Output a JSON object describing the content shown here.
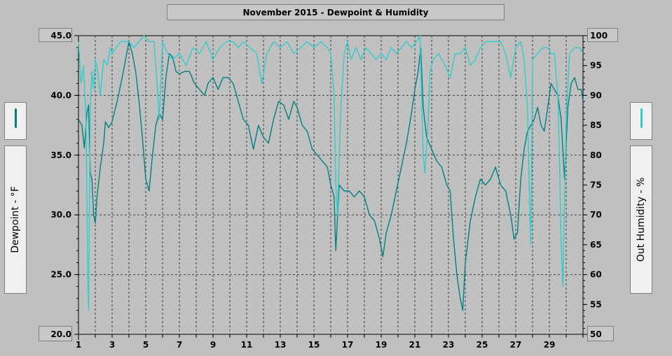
{
  "chart_data": {
    "type": "line",
    "title": "November 2015 - Dewpoint & Humidity",
    "ylabel_left": "Dewpoint - °F",
    "ylabel_right": "Out Humidity - %",
    "x_ticks": [
      "1",
      "3",
      "5",
      "7",
      "9",
      "11",
      "13",
      "15",
      "17",
      "19",
      "21",
      "23",
      "25",
      "27",
      "29"
    ],
    "x_range": [
      1,
      31
    ],
    "y_left": {
      "range": [
        20,
        45
      ],
      "ticks": [
        "45.0",
        "40.0",
        "35.0",
        "30.0",
        "25.0",
        "20.0"
      ]
    },
    "y_right": {
      "range": [
        50,
        100
      ],
      "ticks": [
        "100",
        "95",
        "90",
        "85",
        "80",
        "75",
        "70",
        "65",
        "60",
        "55",
        "50"
      ]
    },
    "series": [
      {
        "name": "Dewpoint",
        "axis": "left",
        "color": "#008080",
        "points": [
          [
            1.0,
            38.0
          ],
          [
            1.2,
            37.5
          ],
          [
            1.35,
            35.6
          ],
          [
            1.5,
            38.5
          ],
          [
            1.6,
            39.2
          ],
          [
            1.7,
            33.5
          ],
          [
            1.8,
            33.0
          ],
          [
            1.9,
            30.0
          ],
          [
            2.0,
            29.3
          ],
          [
            2.1,
            31.5
          ],
          [
            2.3,
            34.0
          ],
          [
            2.5,
            36.0
          ],
          [
            2.6,
            37.8
          ],
          [
            2.8,
            37.3
          ],
          [
            3.0,
            37.8
          ],
          [
            3.3,
            39.5
          ],
          [
            3.6,
            41.5
          ],
          [
            3.8,
            43.0
          ],
          [
            4.0,
            44.5
          ],
          [
            4.2,
            43.5
          ],
          [
            4.4,
            42.0
          ],
          [
            4.6,
            39.5
          ],
          [
            4.8,
            36.5
          ],
          [
            5.0,
            33.0
          ],
          [
            5.2,
            32.0
          ],
          [
            5.4,
            35.0
          ],
          [
            5.6,
            37.5
          ],
          [
            5.8,
            38.5
          ],
          [
            6.0,
            38.0
          ],
          [
            6.2,
            41.5
          ],
          [
            6.4,
            43.5
          ],
          [
            6.6,
            43.2
          ],
          [
            6.8,
            42.0
          ],
          [
            7.0,
            41.8
          ],
          [
            7.3,
            42.0
          ],
          [
            7.6,
            42.0
          ],
          [
            7.9,
            41.0
          ],
          [
            8.2,
            40.5
          ],
          [
            8.5,
            40.0
          ],
          [
            8.7,
            41.0
          ],
          [
            9.0,
            41.5
          ],
          [
            9.3,
            40.5
          ],
          [
            9.6,
            41.5
          ],
          [
            9.9,
            41.5
          ],
          [
            10.2,
            41.0
          ],
          [
            10.5,
            39.5
          ],
          [
            10.8,
            38.0
          ],
          [
            11.1,
            37.5
          ],
          [
            11.4,
            35.5
          ],
          [
            11.7,
            37.5
          ],
          [
            12.0,
            36.5
          ],
          [
            12.3,
            36.0
          ],
          [
            12.6,
            38.0
          ],
          [
            12.9,
            39.5
          ],
          [
            13.2,
            39.2
          ],
          [
            13.5,
            38.0
          ],
          [
            13.8,
            39.5
          ],
          [
            14.0,
            39.0
          ],
          [
            14.3,
            37.5
          ],
          [
            14.6,
            37.0
          ],
          [
            14.9,
            35.5
          ],
          [
            15.2,
            35.0
          ],
          [
            15.5,
            34.5
          ],
          [
            15.8,
            34.0
          ],
          [
            16.0,
            32.5
          ],
          [
            16.2,
            31.5
          ],
          [
            16.3,
            27.0
          ],
          [
            16.5,
            32.5
          ],
          [
            16.8,
            32.0
          ],
          [
            17.1,
            32.0
          ],
          [
            17.4,
            31.5
          ],
          [
            17.7,
            32.0
          ],
          [
            18.0,
            31.5
          ],
          [
            18.3,
            30.0
          ],
          [
            18.6,
            29.5
          ],
          [
            18.9,
            28.0
          ],
          [
            19.1,
            26.5
          ],
          [
            19.3,
            28.5
          ],
          [
            19.6,
            30.0
          ],
          [
            19.9,
            32.0
          ],
          [
            20.2,
            34.0
          ],
          [
            20.5,
            36.0
          ],
          [
            20.8,
            38.5
          ],
          [
            21.0,
            40.5
          ],
          [
            21.2,
            42.0
          ],
          [
            21.35,
            44.0
          ],
          [
            21.5,
            39.0
          ],
          [
            21.7,
            36.5
          ],
          [
            22.0,
            35.5
          ],
          [
            22.3,
            34.5
          ],
          [
            22.6,
            34.0
          ],
          [
            22.9,
            32.5
          ],
          [
            23.1,
            32.0
          ],
          [
            23.3,
            28.0
          ],
          [
            23.5,
            25.0
          ],
          [
            23.7,
            23.0
          ],
          [
            23.85,
            22.0
          ],
          [
            24.0,
            26.0
          ],
          [
            24.3,
            29.5
          ],
          [
            24.6,
            31.5
          ],
          [
            24.9,
            33.0
          ],
          [
            25.2,
            32.5
          ],
          [
            25.5,
            33.0
          ],
          [
            25.8,
            34.0
          ],
          [
            26.1,
            32.5
          ],
          [
            26.4,
            32.0
          ],
          [
            26.7,
            30.0
          ],
          [
            26.9,
            28.0
          ],
          [
            27.1,
            28.5
          ],
          [
            27.3,
            33.0
          ],
          [
            27.5,
            35.5
          ],
          [
            27.7,
            37.0
          ],
          [
            27.9,
            37.5
          ],
          [
            28.1,
            38.0
          ],
          [
            28.3,
            39.0
          ],
          [
            28.5,
            37.5
          ],
          [
            28.7,
            37.0
          ],
          [
            28.9,
            39.0
          ],
          [
            29.1,
            41.0
          ],
          [
            29.3,
            40.5
          ],
          [
            29.5,
            40.0
          ],
          [
            29.7,
            38.0
          ],
          [
            29.9,
            33.0
          ],
          [
            30.1,
            39.0
          ],
          [
            30.3,
            41.0
          ],
          [
            30.5,
            41.5
          ],
          [
            30.7,
            40.5
          ],
          [
            30.9,
            40.5
          ],
          [
            31.0,
            39.5
          ]
        ]
      },
      {
        "name": "Out Humidity",
        "axis": "right",
        "color": "#33cccc",
        "points": [
          [
            1.0,
            99
          ],
          [
            1.15,
            92
          ],
          [
            1.3,
            95
          ],
          [
            1.45,
            86
          ],
          [
            1.55,
            60
          ],
          [
            1.6,
            54
          ],
          [
            1.7,
            88
          ],
          [
            1.8,
            94
          ],
          [
            1.9,
            91
          ],
          [
            2.0,
            96
          ],
          [
            2.1,
            95
          ],
          [
            2.3,
            90
          ],
          [
            2.5,
            96
          ],
          [
            2.7,
            95
          ],
          [
            2.9,
            98
          ],
          [
            3.0,
            97
          ],
          [
            3.5,
            99
          ],
          [
            4.0,
            99
          ],
          [
            4.3,
            98
          ],
          [
            4.6,
            99
          ],
          [
            4.9,
            100
          ],
          [
            5.2,
            99
          ],
          [
            5.5,
            99
          ],
          [
            5.7,
            91
          ],
          [
            5.8,
            86
          ],
          [
            6.0,
            99
          ],
          [
            6.3,
            97
          ],
          [
            6.6,
            96
          ],
          [
            7.0,
            97
          ],
          [
            7.4,
            95
          ],
          [
            7.8,
            98
          ],
          [
            8.2,
            97
          ],
          [
            8.6,
            99
          ],
          [
            9.0,
            96
          ],
          [
            9.4,
            98
          ],
          [
            9.8,
            99
          ],
          [
            10.2,
            99
          ],
          [
            10.5,
            98
          ],
          [
            10.8,
            99
          ],
          [
            11.2,
            98
          ],
          [
            11.6,
            97
          ],
          [
            11.9,
            92
          ],
          [
            12.2,
            97
          ],
          [
            12.6,
            99
          ],
          [
            13.0,
            98
          ],
          [
            13.4,
            99
          ],
          [
            13.8,
            97
          ],
          [
            14.2,
            98
          ],
          [
            14.6,
            99
          ],
          [
            15.0,
            98
          ],
          [
            15.4,
            99
          ],
          [
            15.8,
            98
          ],
          [
            16.0,
            97
          ],
          [
            16.2,
            90
          ],
          [
            16.3,
            75
          ],
          [
            16.4,
            70
          ],
          [
            16.6,
            88
          ],
          [
            16.8,
            97
          ],
          [
            17.0,
            99
          ],
          [
            17.2,
            96
          ],
          [
            17.5,
            98
          ],
          [
            17.8,
            96
          ],
          [
            18.1,
            98
          ],
          [
            18.4,
            97
          ],
          [
            18.7,
            96
          ],
          [
            19.0,
            97
          ],
          [
            19.3,
            96
          ],
          [
            19.6,
            98
          ],
          [
            19.9,
            97
          ],
          [
            20.2,
            98
          ],
          [
            20.5,
            99
          ],
          [
            20.8,
            98
          ],
          [
            21.1,
            99
          ],
          [
            21.3,
            100
          ],
          [
            21.4,
            90
          ],
          [
            21.5,
            80
          ],
          [
            21.6,
            77
          ],
          [
            21.8,
            86
          ],
          [
            21.9,
            94
          ],
          [
            22.1,
            96
          ],
          [
            22.4,
            97
          ],
          [
            22.8,
            95
          ],
          [
            23.1,
            93
          ],
          [
            23.4,
            97
          ],
          [
            23.7,
            97
          ],
          [
            24.0,
            98
          ],
          [
            24.3,
            95
          ],
          [
            24.6,
            96
          ],
          [
            24.9,
            98
          ],
          [
            25.2,
            99
          ],
          [
            25.5,
            99
          ],
          [
            25.8,
            99
          ],
          [
            26.1,
            99
          ],
          [
            26.4,
            97
          ],
          [
            26.7,
            93
          ],
          [
            27.0,
            98
          ],
          [
            27.3,
            99
          ],
          [
            27.5,
            96
          ],
          [
            27.7,
            88
          ],
          [
            27.8,
            75
          ],
          [
            27.9,
            65
          ],
          [
            28.0,
            96
          ],
          [
            28.3,
            97
          ],
          [
            28.6,
            98
          ],
          [
            28.9,
            98
          ],
          [
            29.1,
            97
          ],
          [
            29.3,
            97
          ],
          [
            29.5,
            90
          ],
          [
            29.6,
            80
          ],
          [
            29.7,
            65
          ],
          [
            29.8,
            58
          ],
          [
            30.0,
            86
          ],
          [
            30.2,
            97
          ],
          [
            30.5,
            98
          ],
          [
            30.8,
            98
          ],
          [
            31.0,
            97
          ]
        ]
      }
    ]
  }
}
